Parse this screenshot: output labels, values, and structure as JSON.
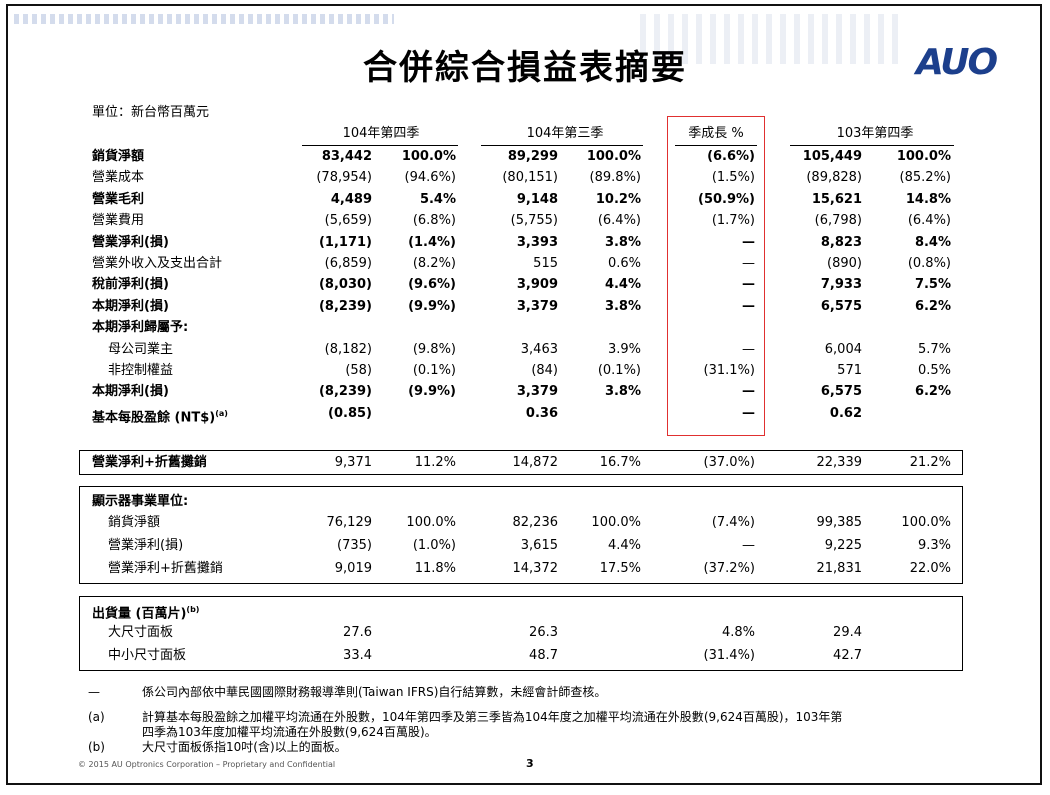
{
  "title": "合併綜合損益表摘要",
  "logo": "AUO",
  "unit": "單位：新台幣百萬元",
  "headers": [
    "104年第四季",
    "104年第三季",
    "季成長 %",
    "103年第四季"
  ],
  "rows": [
    {
      "label": "銷貨淨額",
      "bold": true,
      "indent": false,
      "v": [
        "83,442",
        "100.0%",
        "89,299",
        "100.0%",
        "(6.6%)",
        "105,449",
        "100.0%"
      ]
    },
    {
      "label": "營業成本",
      "bold": false,
      "indent": false,
      "v": [
        "(78,954)",
        "(94.6%)",
        "(80,151)",
        "(89.8%)",
        "(1.5%)",
        "(89,828)",
        "(85.2%)"
      ]
    },
    {
      "label": "營業毛利",
      "bold": true,
      "indent": false,
      "v": [
        "4,489",
        "5.4%",
        "9,148",
        "10.2%",
        "(50.9%)",
        "15,621",
        "14.8%"
      ]
    },
    {
      "label": "營業費用",
      "bold": false,
      "indent": false,
      "v": [
        "(5,659)",
        "(6.8%)",
        "(5,755)",
        "(6.4%)",
        "(1.7%)",
        "(6,798)",
        "(6.4%)"
      ]
    },
    {
      "label": "營業淨利(損)",
      "bold": true,
      "indent": false,
      "v": [
        "(1,171)",
        "(1.4%)",
        "3,393",
        "3.8%",
        "—",
        "8,823",
        "8.4%"
      ]
    },
    {
      "label": "營業外收入及支出合計",
      "bold": false,
      "indent": false,
      "v": [
        "(6,859)",
        "(8.2%)",
        "515",
        "0.6%",
        "—",
        "(890)",
        "(0.8%)"
      ]
    },
    {
      "label": "稅前淨利(損)",
      "bold": true,
      "indent": false,
      "v": [
        "(8,030)",
        "(9.6%)",
        "3,909",
        "4.4%",
        "—",
        "7,933",
        "7.5%"
      ]
    },
    {
      "label": "本期淨利(損)",
      "bold": true,
      "indent": false,
      "v": [
        "(8,239)",
        "(9.9%)",
        "3,379",
        "3.8%",
        "—",
        "6,575",
        "6.2%"
      ]
    },
    {
      "label": "本期淨利歸屬予:",
      "bold": true,
      "indent": false,
      "v": [
        "",
        "",
        "",
        "",
        "",
        "",
        ""
      ]
    },
    {
      "label": "母公司業主",
      "bold": false,
      "indent": true,
      "v": [
        "(8,182)",
        "(9.8%)",
        "3,463",
        "3.9%",
        "—",
        "6,004",
        "5.7%"
      ]
    },
    {
      "label": "非控制權益",
      "bold": false,
      "indent": true,
      "v": [
        "(58)",
        "(0.1%)",
        "(84)",
        "(0.1%)",
        "(31.1%)",
        "571",
        "0.5%"
      ]
    },
    {
      "label": "本期淨利(損)",
      "bold": true,
      "indent": false,
      "v": [
        "(8,239)",
        "(9.9%)",
        "3,379",
        "3.8%",
        "—",
        "6,575",
        "6.2%"
      ]
    },
    {
      "label": "基本每股盈餘 (NT$)",
      "sup": "(a)",
      "bold": true,
      "indent": false,
      "v": [
        "(0.85)",
        "",
        "0.36",
        "",
        "—",
        "0.62",
        ""
      ]
    }
  ],
  "ebitda": {
    "label": "營業淨利+折舊攤銷",
    "v": [
      "9,371",
      "11.2%",
      "14,872",
      "16.7%",
      "(37.0%)",
      "22,339",
      "21.2%"
    ]
  },
  "display": {
    "title": "顯示器事業單位:",
    "rows": [
      {
        "label": "銷貨淨額",
        "v": [
          "76,129",
          "100.0%",
          "82,236",
          "100.0%",
          "(7.4%)",
          "99,385",
          "100.0%"
        ]
      },
      {
        "label": "營業淨利(損)",
        "v": [
          "(735)",
          "(1.0%)",
          "3,615",
          "4.4%",
          "—",
          "9,225",
          "9.3%"
        ]
      },
      {
        "label": "營業淨利+折舊攤銷",
        "v": [
          "9,019",
          "11.8%",
          "14,372",
          "17.5%",
          "(37.2%)",
          "21,831",
          "22.0%"
        ]
      }
    ]
  },
  "shipments": {
    "title": "出貨量 (百萬片)",
    "sup": "(b)",
    "rows": [
      {
        "label": "大尺寸面板",
        "v": [
          "27.6",
          "",
          "26.3",
          "",
          "4.8%",
          "29.4",
          ""
        ]
      },
      {
        "label": "中小尺寸面板",
        "v": [
          "33.4",
          "",
          "48.7",
          "",
          "(31.4%)",
          "42.7",
          ""
        ]
      }
    ]
  },
  "footnotes": {
    "dash_marker": "—",
    "dash_text": "係公司內部依中華民國國際財務報導準則(Taiwan IFRS)自行結算數，未經會計師查核。",
    "a_marker": "(a)",
    "a_line1": "計算基本每股盈餘之加權平均流通在外股數，104年第四季及第三季皆為104年度之加權平均流通在外股數(9,624百萬股)，103年第",
    "a_line2": "四季為103年度加權平均流通在外股數(9,624百萬股)。",
    "b_marker": "(b)",
    "b_text": "大尺寸面板係指10吋(含)以上的面板。"
  },
  "copyright": "© 2015 AU Optronics Corporation – Proprietary and Confidential",
  "page_number": "3"
}
